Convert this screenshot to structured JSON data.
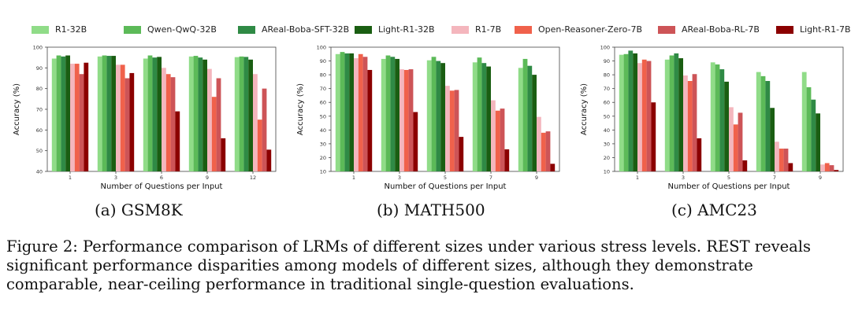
{
  "legend": [
    {
      "name": "R1-32B",
      "color": "#90dc88"
    },
    {
      "name": "Qwen-QwQ-32B",
      "color": "#5cba58"
    },
    {
      "name": "AReal-Boba-SFT-32B",
      "color": "#2f8a45"
    },
    {
      "name": "Light-R1-32B",
      "color": "#1a5e12"
    },
    {
      "name": "R1-7B",
      "color": "#f4b6bd"
    },
    {
      "name": "Open-Reasoner-Zero-7B",
      "color": "#f0614b"
    },
    {
      "name": "AReal-Boba-RL-7B",
      "color": "#cd5457"
    },
    {
      "name": "Light-R1-7B",
      "color": "#8b0000"
    }
  ],
  "chart_data": [
    {
      "type": "bar",
      "subcaption": "(a) GSM8K",
      "xlabel": "Number of Questions per Input",
      "ylabel": "Accuracy (%)",
      "ylim": [
        40,
        100
      ],
      "yticks": [
        40,
        50,
        60,
        70,
        80,
        90,
        100
      ],
      "categories": [
        "1",
        "3",
        "6",
        "9",
        "12"
      ],
      "series": [
        {
          "name": "R1-32B",
          "values": [
            94.5,
            95.5,
            94.5,
            95.5,
            95.2
          ]
        },
        {
          "name": "Qwen-QwQ-32B",
          "values": [
            96.0,
            96.0,
            96.0,
            95.8,
            95.5
          ]
        },
        {
          "name": "AReal-Boba-SFT-32B",
          "values": [
            95.5,
            95.8,
            95.0,
            95.0,
            95.3
          ]
        },
        {
          "name": "Light-R1-32B",
          "values": [
            96.0,
            95.8,
            95.3,
            94.0,
            94.0
          ]
        },
        {
          "name": "R1-7B",
          "values": [
            92.0,
            91.5,
            90.0,
            89.5,
            87.0
          ]
        },
        {
          "name": "Open-Reasoner-Zero-7B",
          "values": [
            92.0,
            91.5,
            87.0,
            76.0,
            65.0
          ]
        },
        {
          "name": "AReal-Boba-RL-7B",
          "values": [
            87.0,
            85.0,
            85.5,
            85.0,
            80.0
          ]
        },
        {
          "name": "Light-R1-7B",
          "values": [
            92.5,
            87.5,
            69.0,
            56.0,
            50.5
          ]
        }
      ]
    },
    {
      "type": "bar",
      "subcaption": "(b) MATH500",
      "xlabel": "Number of Questions per Input",
      "ylabel": "Accuracy (%)",
      "ylim": [
        10,
        100
      ],
      "yticks": [
        10,
        20,
        30,
        40,
        50,
        60,
        70,
        80,
        90,
        100
      ],
      "categories": [
        "1",
        "3",
        "5",
        "7",
        "9"
      ],
      "series": [
        {
          "name": "R1-32B",
          "values": [
            95.0,
            91.5,
            90.5,
            89.0,
            85.0
          ]
        },
        {
          "name": "Qwen-QwQ-32B",
          "values": [
            96.5,
            94.0,
            93.0,
            92.5,
            91.5
          ]
        },
        {
          "name": "AReal-Boba-SFT-32B",
          "values": [
            95.5,
            93.0,
            90.0,
            88.5,
            86.5
          ]
        },
        {
          "name": "Light-R1-32B",
          "values": [
            95.5,
            91.5,
            88.5,
            86.0,
            80.0
          ]
        },
        {
          "name": "R1-7B",
          "values": [
            92.0,
            84.0,
            72.0,
            61.5,
            49.5
          ]
        },
        {
          "name": "Open-Reasoner-Zero-7B",
          "values": [
            95.0,
            83.5,
            68.5,
            54.0,
            38.0
          ]
        },
        {
          "name": "AReal-Boba-RL-7B",
          "values": [
            93.0,
            84.0,
            69.0,
            55.5,
            39.0
          ]
        },
        {
          "name": "Light-R1-7B",
          "values": [
            83.5,
            53.0,
            35.0,
            26.0,
            15.5
          ]
        }
      ]
    },
    {
      "type": "bar",
      "subcaption": "(c) AMC23",
      "xlabel": "Number of Questions per Input",
      "ylabel": "Accuracy (%)",
      "ylim": [
        10,
        100
      ],
      "yticks": [
        10,
        20,
        30,
        40,
        50,
        60,
        70,
        80,
        90,
        100
      ],
      "categories": [
        "1",
        "3",
        "5",
        "7",
        "9"
      ],
      "series": [
        {
          "name": "R1-32B",
          "values": [
            94.5,
            91.0,
            89.0,
            82.0,
            82.0
          ]
        },
        {
          "name": "Qwen-QwQ-32B",
          "values": [
            95.0,
            94.0,
            87.5,
            79.0,
            71.0
          ]
        },
        {
          "name": "AReal-Boba-SFT-32B",
          "values": [
            97.5,
            95.5,
            84.0,
            75.5,
            62.0
          ]
        },
        {
          "name": "Light-R1-32B",
          "values": [
            95.5,
            92.0,
            75.0,
            56.0,
            52.0
          ]
        },
        {
          "name": "R1-7B",
          "values": [
            88.5,
            79.5,
            56.5,
            31.5,
            15.0
          ]
        },
        {
          "name": "Open-Reasoner-Zero-7B",
          "values": [
            91.0,
            75.5,
            44.0,
            26.5,
            16.0
          ]
        },
        {
          "name": "AReal-Boba-RL-7B",
          "values": [
            90.0,
            80.5,
            52.5,
            26.5,
            14.5
          ]
        },
        {
          "name": "Light-R1-7B",
          "values": [
            60.0,
            34.0,
            18.0,
            16.0,
            11.0
          ]
        }
      ]
    }
  ],
  "caption": {
    "line1": "Figure 2: Performance comparison of LRMs of different sizes under various stress levels. REST reveals",
    "line2": "significant performance disparities among models of different sizes, although they demonstrate",
    "line3": "comparable, near-ceiling performance in traditional single-question evaluations."
  }
}
